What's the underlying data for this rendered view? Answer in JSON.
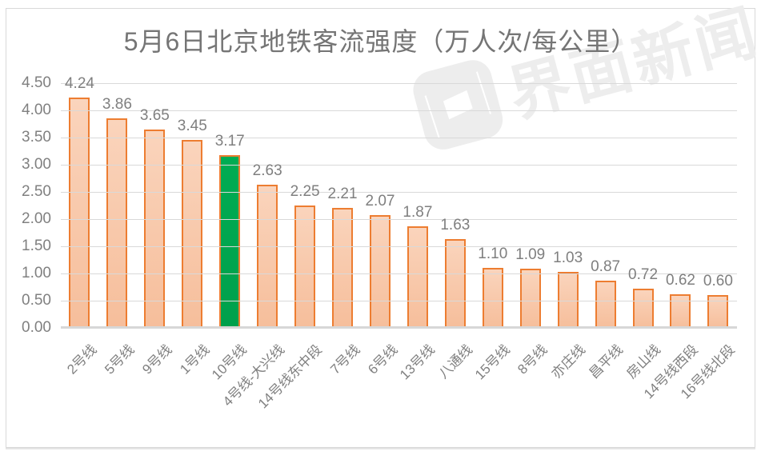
{
  "watermark": {
    "text": "界面新闻",
    "logo": "jiemian-news-logo"
  },
  "chart_data": {
    "type": "bar",
    "title": "5月6日北京地铁客流强度（万人次/每公里）",
    "categories": [
      "2号线",
      "5号线",
      "9号线",
      "1号线",
      "10号线",
      "4号线-大兴线",
      "14号线东中段",
      "7号线",
      "6号线",
      "13号线",
      "八通线",
      "15号线",
      "8号线",
      "亦庄线",
      "昌平线",
      "房山线",
      "14号线西段",
      "16号线北段"
    ],
    "values": [
      4.24,
      3.86,
      3.65,
      3.45,
      3.17,
      2.63,
      2.25,
      2.21,
      2.07,
      1.87,
      1.63,
      1.1,
      1.09,
      1.03,
      0.87,
      0.72,
      0.62,
      0.6
    ],
    "value_labels": [
      "4.24",
      "3.86",
      "3.65",
      "3.45",
      "3.17",
      "2.63",
      "2.25",
      "2.21",
      "2.07",
      "1.87",
      "1.63",
      "1.10",
      "1.09",
      "1.03",
      "0.87",
      "0.72",
      "0.62",
      "0.60"
    ],
    "highlight": {
      "index": 4,
      "category": "10号线"
    },
    "xlabel": "",
    "ylabel": "",
    "ylim": [
      0,
      4.5
    ],
    "ytick_step": 0.5,
    "ytick_labels": [
      "4.50",
      "4.00",
      "3.50",
      "3.00",
      "2.50",
      "2.00",
      "1.50",
      "1.00",
      "0.50",
      "0.00"
    ],
    "grid": true,
    "legend": "none",
    "colors": {
      "bar_fill_top": "#FAD4BC",
      "bar_fill_bottom": "#F6BE9B",
      "bar_border": "#ED7D31",
      "highlight_fill_top": "#00AC53",
      "highlight_fill_bottom": "#00A04C",
      "highlight_border": "#ED7D31",
      "gridline": "#D9D9D9",
      "axis_line": "#D7D7D7",
      "tick_text": "#808080",
      "value_text": "#7F7F7F",
      "title_text": "#757575",
      "watermark": "#EDEDED"
    }
  }
}
